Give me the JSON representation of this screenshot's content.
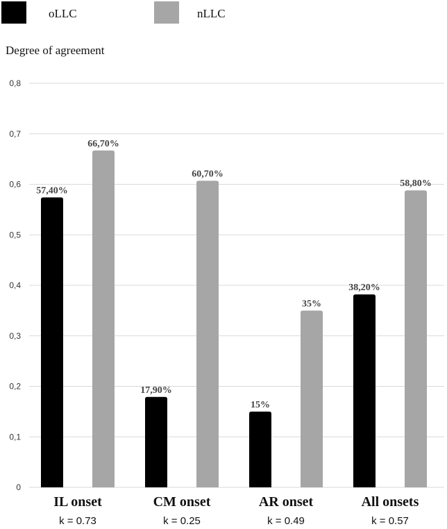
{
  "chart_data": {
    "type": "bar",
    "ylabel": "Degree of agreement",
    "ylim": [
      0,
      0.8
    ],
    "yticks": [
      "0",
      "0,1",
      "0,2",
      "0,3",
      "0,4",
      "0,5",
      "0,6",
      "0,7",
      "0,8"
    ],
    "categories": [
      "IL onset",
      "CM onset",
      "AR onset",
      "All onsets"
    ],
    "category_notes": [
      "k = 0.73",
      "k = 0.25",
      "k = 0.49",
      "k = 0.57"
    ],
    "grid": true,
    "legend_position": "top-left",
    "series": [
      {
        "name": "oLLC",
        "color": "#000000",
        "values": [
          0.574,
          0.179,
          0.15,
          0.382
        ],
        "labels": [
          "57,40%",
          "17,90%",
          "15%",
          "38,20%"
        ]
      },
      {
        "name": "nLLC",
        "color": "#a6a6a6",
        "values": [
          0.667,
          0.607,
          0.35,
          0.588
        ],
        "labels": [
          "66,70%",
          "60,70%",
          "35%",
          "58,80%"
        ]
      }
    ]
  }
}
